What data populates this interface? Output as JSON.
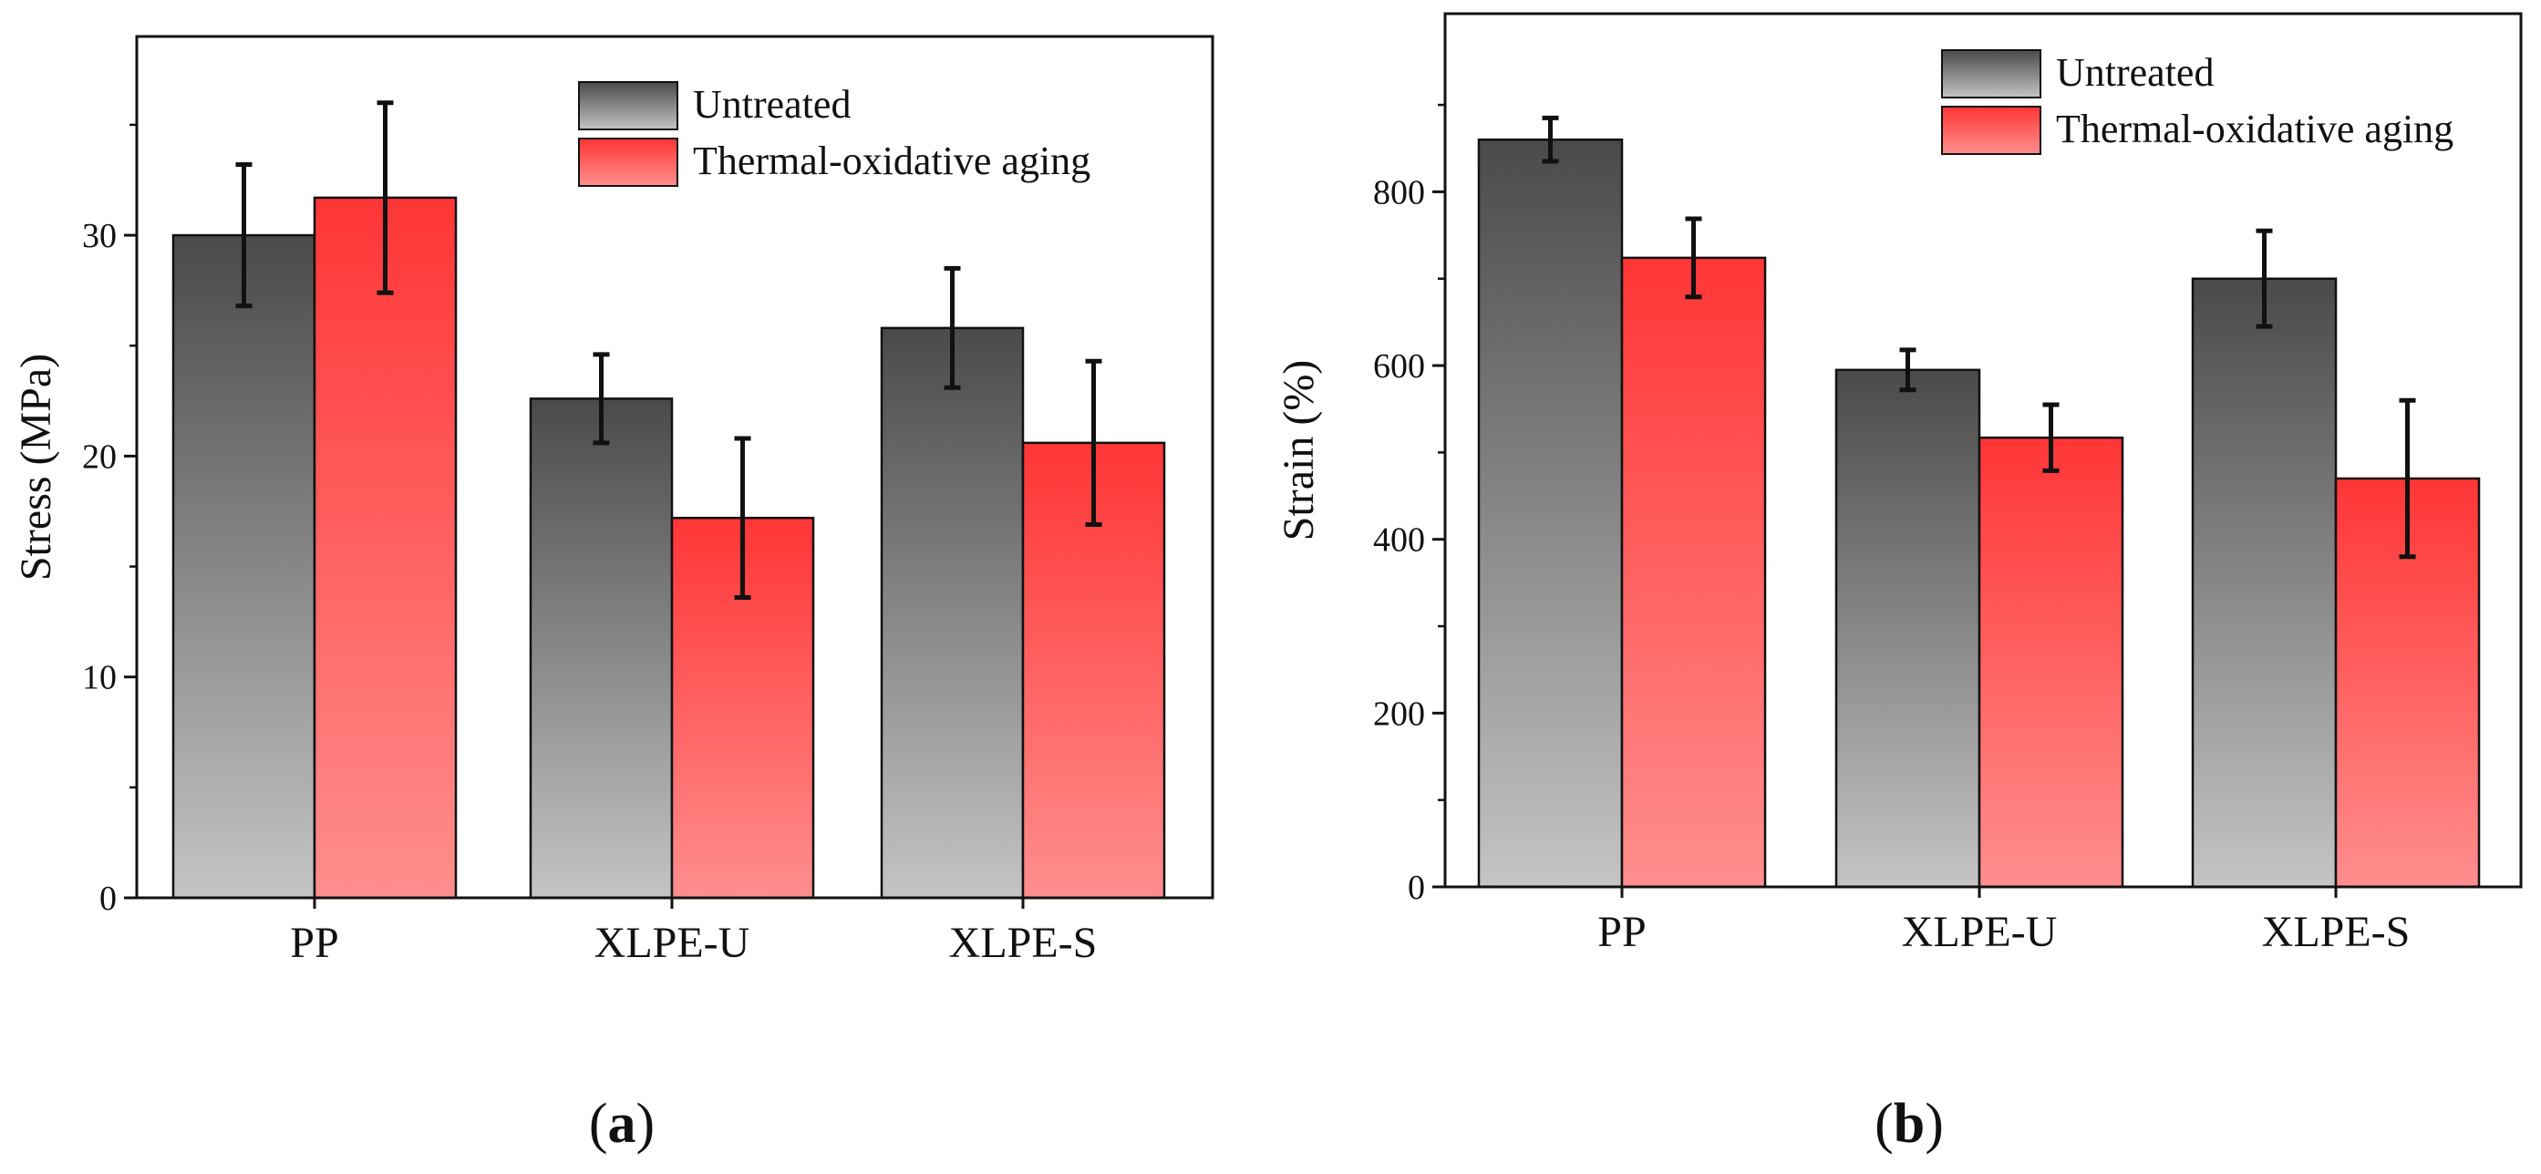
{
  "chart_data": [
    {
      "type": "bar",
      "panel": "a",
      "ylabel": "Stress (MPa)",
      "xlabel": "",
      "categories": [
        "PP",
        "XLPE-U",
        "XLPE-S"
      ],
      "ylim": [
        0,
        39
      ],
      "yticks": [
        0,
        10,
        20,
        30
      ],
      "ytick_labels": [
        "0",
        "10",
        "20",
        "30"
      ],
      "legend_position": "top-right",
      "series": [
        {
          "name": "Untreated",
          "color": "#555555",
          "values": [
            30.0,
            22.6,
            25.8
          ],
          "errors": [
            3.2,
            2.0,
            2.7
          ]
        },
        {
          "name": "Thermal-oxidative aging",
          "color": "#ff3333",
          "values": [
            31.7,
            17.2,
            20.6
          ],
          "errors": [
            4.3,
            3.6,
            3.7
          ]
        }
      ]
    },
    {
      "type": "bar",
      "panel": "b",
      "ylabel": "Strain (%)",
      "xlabel": "",
      "categories": [
        "PP",
        "XLPE-U",
        "XLPE-S"
      ],
      "ylim": [
        0,
        1005
      ],
      "yticks": [
        0,
        200,
        400,
        600,
        800
      ],
      "ytick_labels": [
        "0",
        "200",
        "400",
        "600",
        "800"
      ],
      "legend_position": "top-right",
      "series": [
        {
          "name": "Untreated",
          "color": "#555555",
          "values": [
            860,
            595,
            700
          ],
          "errors": [
            25,
            23,
            55
          ]
        },
        {
          "name": "Thermal-oxidative aging",
          "color": "#ff3333",
          "values": [
            724,
            517,
            470
          ],
          "errors": [
            45,
            38,
            90
          ]
        }
      ]
    }
  ],
  "panel_labels": {
    "a": {
      "open": "(",
      "letter": "a",
      "close": ")"
    },
    "b": {
      "open": "(",
      "letter": "b",
      "close": ")"
    }
  }
}
